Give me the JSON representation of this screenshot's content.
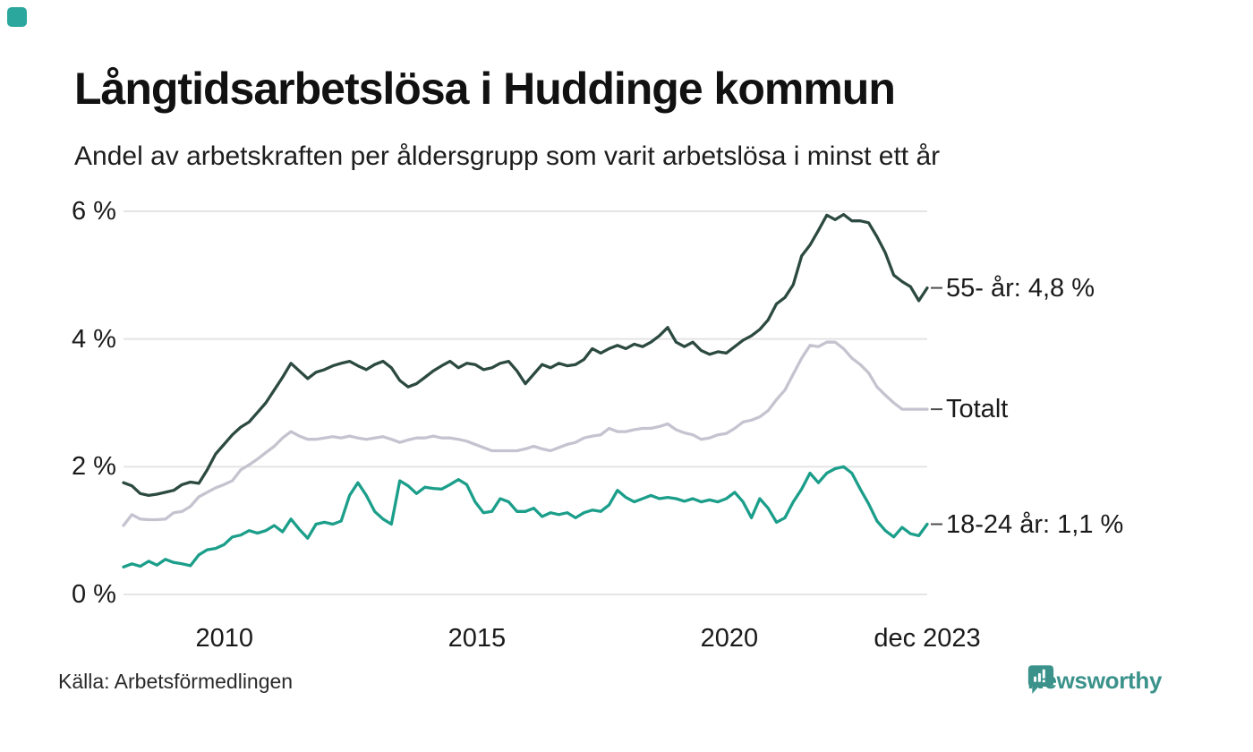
{
  "page": {
    "title": "Långtidsarbetslösa i Huddinge kommun",
    "subtitle": "Andel av arbetskraften per åldersgrupp som varit arbetslösa i minst ett år",
    "source": "Källa: Arbetsförmedlingen",
    "background_color": "#ffffff",
    "corner_mark_color": "#2ca79e"
  },
  "branding": {
    "logo_text": "Newsworthy",
    "logo_color": "#3A928B",
    "logo_icon": "speech-bubble-bar-chart-icon"
  },
  "chart_data": {
    "type": "line",
    "title": "Långtidsarbetslösa i Huddinge kommun",
    "subtitle": "Andel av arbetskraften per åldersgrupp som varit arbetslösa i minst ett år",
    "xlabel": "",
    "ylabel": "",
    "x_range": [
      2008.0,
      2023.92
    ],
    "ylim": [
      0,
      6
    ],
    "grid": true,
    "grid_color": "#E4E4E6",
    "y_ticks": [
      {
        "label": "0 %",
        "value": 0
      },
      {
        "label": "2 %",
        "value": 2
      },
      {
        "label": "4 %",
        "value": 4
      },
      {
        "label": "6 %",
        "value": 6
      }
    ],
    "x_ticks": [
      {
        "label": "2010",
        "value": 2010
      },
      {
        "label": "2015",
        "value": 2015
      },
      {
        "label": "2020",
        "value": 2020
      },
      {
        "label": "dec 2023",
        "value": 2023.92
      }
    ],
    "legend_position": "right-end-labels",
    "series": [
      {
        "name": "55- år",
        "end_label": "55- år: 4,8 %",
        "last_value": 4.8,
        "color": "#2C4A41",
        "values": [
          1.75,
          1.7,
          1.58,
          1.55,
          1.57,
          1.6,
          1.63,
          1.72,
          1.76,
          1.74,
          1.95,
          2.2,
          2.35,
          2.5,
          2.62,
          2.7,
          2.85,
          3.0,
          3.2,
          3.4,
          3.62,
          3.5,
          3.38,
          3.48,
          3.52,
          3.58,
          3.62,
          3.65,
          3.58,
          3.52,
          3.6,
          3.65,
          3.55,
          3.35,
          3.25,
          3.3,
          3.4,
          3.5,
          3.58,
          3.65,
          3.55,
          3.62,
          3.6,
          3.52,
          3.55,
          3.62,
          3.65,
          3.5,
          3.3,
          3.45,
          3.6,
          3.55,
          3.62,
          3.58,
          3.6,
          3.68,
          3.85,
          3.78,
          3.85,
          3.9,
          3.85,
          3.92,
          3.88,
          3.95,
          4.05,
          4.18,
          3.95,
          3.88,
          3.95,
          3.82,
          3.76,
          3.8,
          3.78,
          3.88,
          3.98,
          4.05,
          4.15,
          4.3,
          4.55,
          4.65,
          4.85,
          5.3,
          5.47,
          5.7,
          5.94,
          5.87,
          5.95,
          5.85,
          5.85,
          5.82,
          5.6,
          5.35,
          5.0,
          4.9,
          4.82,
          4.6,
          4.8
        ]
      },
      {
        "name": "Totalt",
        "end_label": "Totalt",
        "last_value": 2.9,
        "color": "#C5C3CF",
        "values": [
          1.08,
          1.25,
          1.18,
          1.17,
          1.17,
          1.18,
          1.28,
          1.3,
          1.38,
          1.53,
          1.6,
          1.67,
          1.72,
          1.78,
          1.95,
          2.03,
          2.12,
          2.22,
          2.32,
          2.45,
          2.55,
          2.48,
          2.43,
          2.43,
          2.45,
          2.47,
          2.45,
          2.48,
          2.45,
          2.43,
          2.45,
          2.47,
          2.43,
          2.38,
          2.42,
          2.45,
          2.45,
          2.48,
          2.45,
          2.45,
          2.43,
          2.4,
          2.35,
          2.3,
          2.25,
          2.25,
          2.25,
          2.25,
          2.28,
          2.32,
          2.28,
          2.25,
          2.3,
          2.35,
          2.38,
          2.45,
          2.48,
          2.5,
          2.6,
          2.55,
          2.55,
          2.58,
          2.6,
          2.6,
          2.63,
          2.67,
          2.58,
          2.53,
          2.5,
          2.43,
          2.45,
          2.5,
          2.52,
          2.6,
          2.7,
          2.73,
          2.78,
          2.88,
          3.05,
          3.2,
          3.45,
          3.7,
          3.9,
          3.88,
          3.95,
          3.95,
          3.85,
          3.7,
          3.6,
          3.47,
          3.25,
          3.12,
          3.0,
          2.9,
          2.9,
          2.9,
          2.9
        ]
      },
      {
        "name": "18-24 år",
        "end_label": "18-24 år: 1,1 %",
        "last_value": 1.1,
        "color": "#1B9E8A",
        "values": [
          0.43,
          0.48,
          0.44,
          0.52,
          0.46,
          0.55,
          0.5,
          0.48,
          0.45,
          0.62,
          0.7,
          0.72,
          0.78,
          0.9,
          0.93,
          1.0,
          0.96,
          1.0,
          1.08,
          0.98,
          1.18,
          1.02,
          0.88,
          1.1,
          1.13,
          1.1,
          1.15,
          1.55,
          1.75,
          1.55,
          1.3,
          1.18,
          1.1,
          1.78,
          1.7,
          1.58,
          1.68,
          1.66,
          1.65,
          1.72,
          1.8,
          1.72,
          1.45,
          1.28,
          1.3,
          1.5,
          1.45,
          1.3,
          1.3,
          1.35,
          1.22,
          1.28,
          1.25,
          1.28,
          1.2,
          1.28,
          1.32,
          1.3,
          1.4,
          1.63,
          1.52,
          1.45,
          1.5,
          1.55,
          1.5,
          1.52,
          1.5,
          1.46,
          1.5,
          1.45,
          1.48,
          1.45,
          1.5,
          1.6,
          1.45,
          1.2,
          1.5,
          1.35,
          1.13,
          1.2,
          1.45,
          1.65,
          1.9,
          1.75,
          1.9,
          1.97,
          2.0,
          1.9,
          1.65,
          1.42,
          1.15,
          1.0,
          0.9,
          1.05,
          0.95,
          0.92,
          1.1
        ]
      }
    ]
  }
}
